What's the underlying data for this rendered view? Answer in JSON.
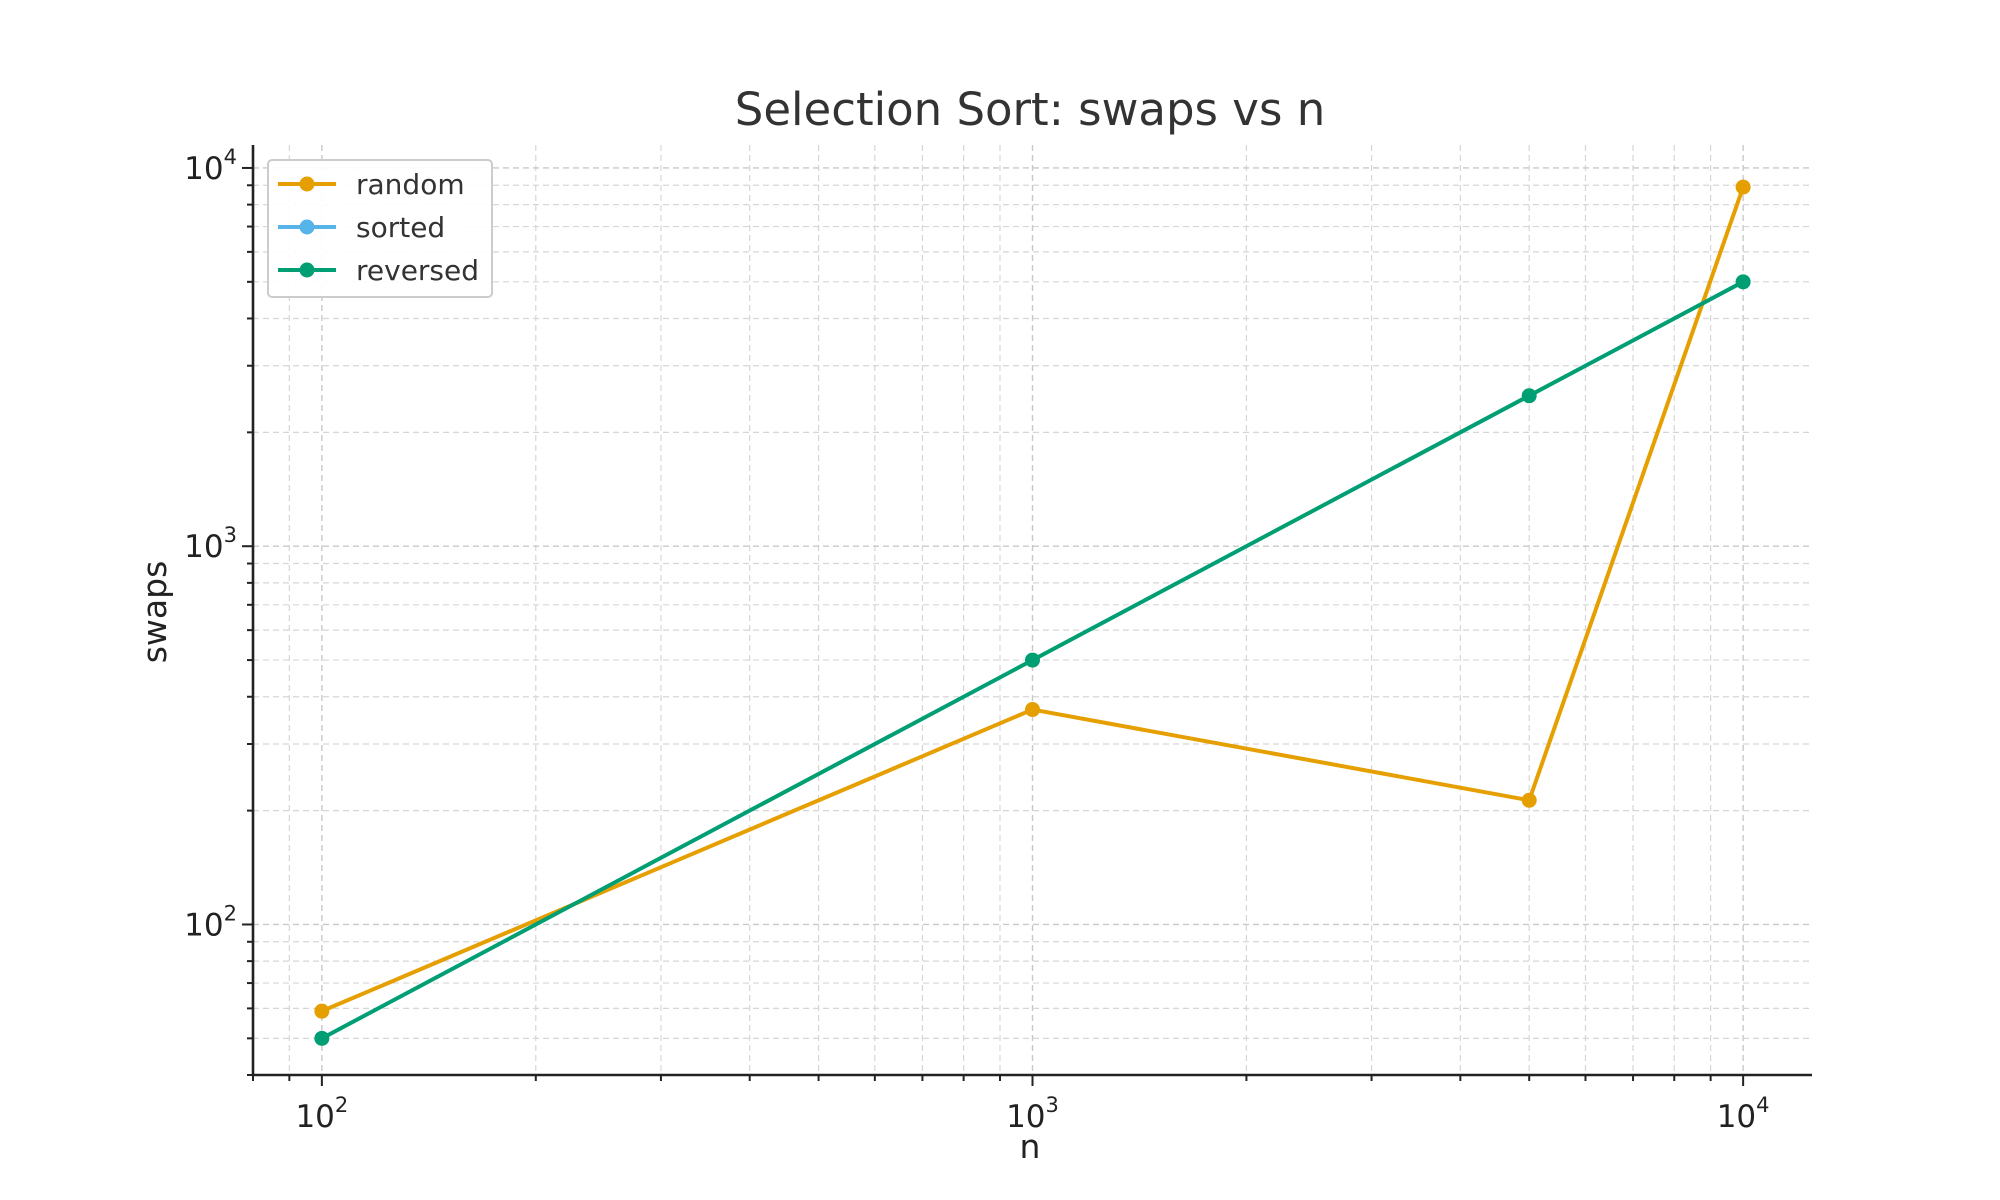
{
  "chart_data": {
    "type": "line",
    "title": "Selection Sort: swaps vs n",
    "xlabel": "n",
    "ylabel": "swaps",
    "x_scale": "log",
    "y_scale": "log",
    "xlim": [
      80,
      12500
    ],
    "ylim": [
      40,
      11500
    ],
    "x_ticks": [
      {
        "base": "10",
        "exp": "2",
        "value": 100
      },
      {
        "base": "10",
        "exp": "3",
        "value": 1000
      },
      {
        "base": "10",
        "exp": "4",
        "value": 10000
      }
    ],
    "y_ticks": [
      {
        "base": "10",
        "exp": "2",
        "value": 100
      },
      {
        "base": "10",
        "exp": "3",
        "value": 1000
      },
      {
        "base": "10",
        "exp": "4",
        "value": 10000
      }
    ],
    "grid": true,
    "legend_position": "top-left",
    "x": [
      100,
      1000,
      5000,
      10000
    ],
    "series": [
      {
        "name": "random",
        "color": "#E69F00",
        "values": [
          59,
          370,
          213,
          8900
        ],
        "marker": "circle"
      },
      {
        "name": "sorted",
        "color": "#56B4E9",
        "values": [
          null,
          null,
          null,
          null
        ],
        "marker": "circle"
      },
      {
        "name": "reversed",
        "color": "#009E73",
        "values": [
          50,
          500,
          2500,
          5000
        ],
        "marker": "circle"
      }
    ]
  }
}
